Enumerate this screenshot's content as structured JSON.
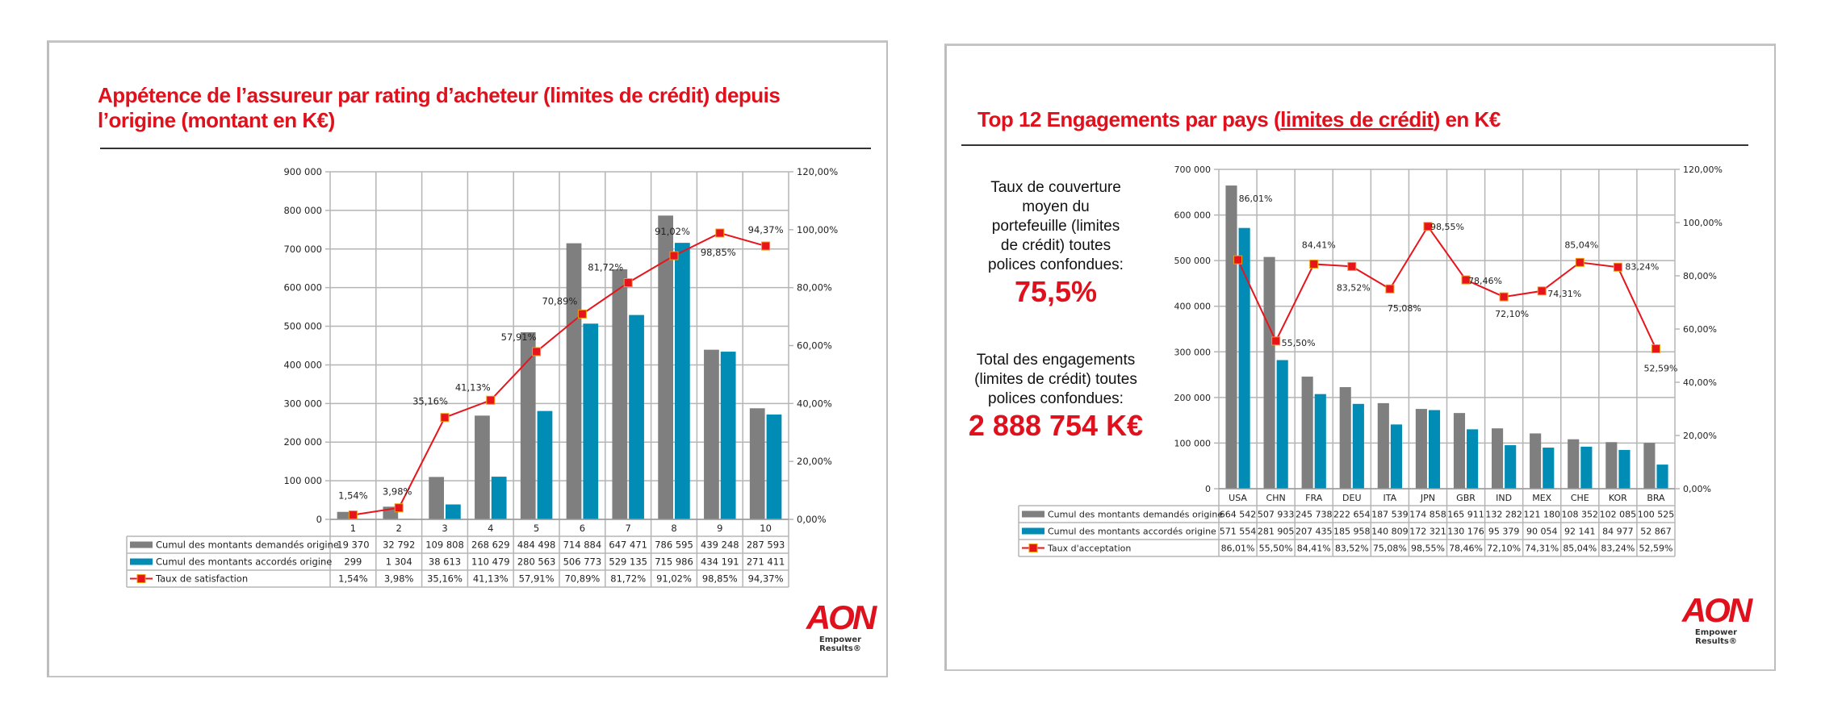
{
  "slides": {
    "left": {
      "title": "Appétence de l’assureur par rating d’acheteur (limites de crédit) depuis l’origine (montant en K€)",
      "title_line1": "Appétence de l’assureur par rating d’acheteur (limites de crédit) depuis",
      "title_line2": "l’origine (montant en K€)",
      "logo": {
        "text": "AON",
        "tagline": "Empower Results®"
      }
    },
    "right": {
      "title_pre": "Top 12 Engagements par pays (",
      "title_link": "limites de crédit",
      "title_post": ") en K€",
      "kpi1": {
        "label_lines": [
          "Taux de couverture",
          "moyen du",
          "portefeuille (limites",
          "de crédit) toutes",
          "polices confondues:"
        ],
        "value": "75,5%"
      },
      "kpi2": {
        "label_lines": [
          "Total des engagements",
          "(limites de crédit) toutes",
          "polices confondues:"
        ],
        "value": "2 888 754 K€"
      },
      "logo": {
        "text": "AON",
        "tagline": "Empower Results®"
      }
    }
  },
  "colors": {
    "brand_red": "#e0101c",
    "bar_grey": "#7f7f7f",
    "bar_blue": "#008cb4",
    "line_red": "#e8141c",
    "marker_edge": "#f39c12",
    "grid": "#b5b5b5"
  },
  "chart_data": [
    {
      "type": "bar",
      "title": "Appétence de l’assureur par rating d’acheteur (limites de crédit) depuis l’origine (montant en K€)",
      "xlabel": "",
      "ylabel": "",
      "categories": [
        "1",
        "2",
        "3",
        "4",
        "5",
        "6",
        "7",
        "8",
        "9",
        "10"
      ],
      "series": [
        {
          "name": "Cumul des montants demandés origine",
          "kind": "bar",
          "axis": "left",
          "values": [
            19370,
            32792,
            109808,
            268629,
            484498,
            714884,
            647471,
            786595,
            439248,
            287593
          ],
          "labels": [
            "19 370",
            "32 792",
            "109 808",
            "268 629",
            "484 498",
            "714 884",
            "647 471",
            "786 595",
            "439 248",
            "287 593"
          ]
        },
        {
          "name": "Cumul des montants accordés origine",
          "kind": "bar",
          "axis": "left",
          "values": [
            299,
            1304,
            38613,
            110479,
            280563,
            506773,
            529135,
            715986,
            434191,
            271411
          ],
          "labels": [
            "299",
            "1 304",
            "38 613",
            "110 479",
            "280 563",
            "506 773",
            "529 135",
            "715 986",
            "434 191",
            "271 411"
          ]
        },
        {
          "name": "Taux de satisfaction",
          "kind": "line",
          "axis": "right",
          "values": [
            1.54,
            3.98,
            35.16,
            41.13,
            57.91,
            70.89,
            81.72,
            91.02,
            98.85,
            94.37
          ],
          "labels": [
            "1,54%",
            "3,98%",
            "35,16%",
            "41,13%",
            "57,91%",
            "70,89%",
            "81,72%",
            "91,02%",
            "98,85%",
            "94,37%"
          ]
        }
      ],
      "ylim": [
        0,
        900000
      ],
      "y_ticks": [
        "0",
        "100 000",
        "200 000",
        "300 000",
        "400 000",
        "500 000",
        "600 000",
        "700 000",
        "800 000",
        "900 000"
      ],
      "y2lim": [
        0,
        120
      ],
      "y2_ticks": [
        "0,00%",
        "20,00%",
        "40,00%",
        "60,00%",
        "80,00%",
        "100,00%",
        "120,00%"
      ],
      "grid": true,
      "legend": "data-table-below"
    },
    {
      "type": "bar",
      "title": "Top 12 Engagements par pays (limites de crédit) en K€",
      "xlabel": "",
      "ylabel": "",
      "categories": [
        "USA",
        "CHN",
        "FRA",
        "DEU",
        "ITA",
        "JPN",
        "GBR",
        "IND",
        "MEX",
        "CHE",
        "KOR",
        "BRA"
      ],
      "series": [
        {
          "name": "Cumul des montants demandés origine",
          "kind": "bar",
          "axis": "left",
          "values": [
            664542,
            507933,
            245738,
            222654,
            187539,
            174858,
            165911,
            132282,
            121180,
            108352,
            102085,
            100525
          ],
          "labels": [
            "664 542",
            "507 933",
            "245 738",
            "222 654",
            "187 539",
            "174 858",
            "165 911",
            "132 282",
            "121 180",
            "108 352",
            "102 085",
            "100 525"
          ]
        },
        {
          "name": "Cumul des montants accordés origine",
          "kind": "bar",
          "axis": "left",
          "values": [
            571554,
            281905,
            207435,
            185958,
            140809,
            172321,
            130176,
            95379,
            90054,
            92141,
            84977,
            52867
          ],
          "labels": [
            "571 554",
            "281 905",
            "207 435",
            "185 958",
            "140 809",
            "172 321",
            "130 176",
            "95 379",
            "90 054",
            "92 141",
            "84 977",
            "52 867"
          ]
        },
        {
          "name": "Taux d'acceptation",
          "kind": "line",
          "axis": "right",
          "values": [
            86.01,
            55.5,
            84.41,
            83.52,
            75.08,
            98.55,
            78.46,
            72.1,
            74.31,
            85.04,
            83.24,
            52.59
          ],
          "labels": [
            "86,01%",
            "55,50%",
            "84,41%",
            "83,52%",
            "75,08%",
            "98,55%",
            "78,46%",
            "72,10%",
            "74,31%",
            "85,04%",
            "83,24%",
            "52,59%"
          ]
        }
      ],
      "ylim": [
        0,
        700000
      ],
      "y_ticks": [
        "0",
        "100 000",
        "200 000",
        "300 000",
        "400 000",
        "500 000",
        "600 000",
        "700 000"
      ],
      "y2lim": [
        0,
        120
      ],
      "y2_ticks": [
        "0,00%",
        "20,00%",
        "40,00%",
        "60,00%",
        "80,00%",
        "100,00%",
        "120,00%"
      ],
      "grid": true,
      "legend": "data-table-below"
    }
  ]
}
